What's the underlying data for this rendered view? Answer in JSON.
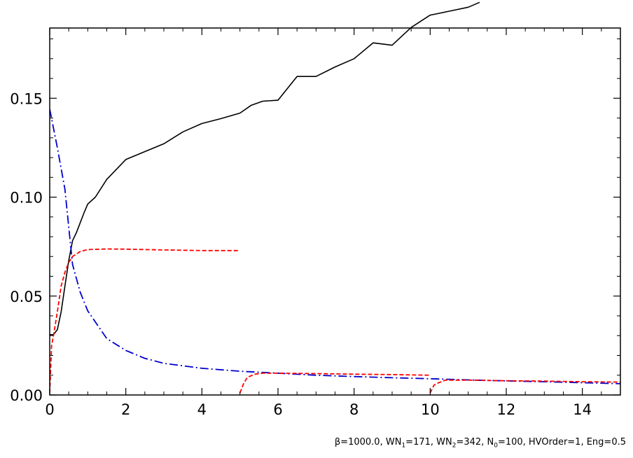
{
  "chart_data": {
    "type": "line",
    "title": "",
    "xlabel": "",
    "ylabel": "",
    "xlim": [
      0,
      15
    ],
    "ylim": [
      0,
      0.1855
    ],
    "x_ticks": [
      0,
      2,
      4,
      6,
      8,
      10,
      12,
      14
    ],
    "x_tick_labels": [
      "0",
      "2",
      "4",
      "6",
      "8",
      "10",
      "12",
      "14"
    ],
    "y_ticks": [
      0.0,
      0.05,
      0.1,
      0.15
    ],
    "y_tick_labels": [
      "0.00",
      "0.05",
      "0.10",
      "0.15"
    ],
    "grid": false,
    "series": [
      {
        "color": "#000000",
        "style": "solid",
        "points": [
          [
            0,
            0.0305
          ],
          [
            0.1,
            0.0305
          ],
          [
            0.2,
            0.033
          ],
          [
            0.3,
            0.042
          ],
          [
            0.4,
            0.055
          ],
          [
            0.5,
            0.068
          ],
          [
            0.6,
            0.078
          ],
          [
            0.7,
            0.082
          ],
          [
            0.8,
            0.087
          ],
          [
            0.9,
            0.092
          ],
          [
            1.0,
            0.0965
          ],
          [
            1.2,
            0.1
          ],
          [
            1.5,
            0.109
          ],
          [
            2.0,
            0.119
          ],
          [
            2.5,
            0.123
          ],
          [
            3.0,
            0.127
          ],
          [
            3.5,
            0.133
          ],
          [
            4.0,
            0.1372
          ],
          [
            4.5,
            0.1397
          ],
          [
            5.0,
            0.1425
          ],
          [
            5.3,
            0.1465
          ],
          [
            5.6,
            0.1485
          ],
          [
            6.0,
            0.149
          ],
          [
            6.5,
            0.161
          ],
          [
            7.0,
            0.161
          ],
          [
            7.5,
            0.1658
          ],
          [
            8.0,
            0.17
          ],
          [
            8.5,
            0.178
          ],
          [
            9.0,
            0.1768
          ],
          [
            9.5,
            0.1858
          ],
          [
            10.0,
            0.192
          ],
          [
            10.5,
            0.194
          ],
          [
            11.0,
            0.196
          ],
          [
            11.3,
            0.1985
          ]
        ]
      },
      {
        "color": "#0000cc",
        "style": "dashdot",
        "points": [
          [
            0,
            0.1445
          ],
          [
            0.2,
            0.125
          ],
          [
            0.4,
            0.104
          ],
          [
            0.6,
            0.066
          ],
          [
            0.8,
            0.052
          ],
          [
            1.0,
            0.0425
          ],
          [
            1.5,
            0.0285
          ],
          [
            2.0,
            0.0225
          ],
          [
            2.5,
            0.0185
          ],
          [
            3.0,
            0.016
          ],
          [
            4.0,
            0.0135
          ],
          [
            5.0,
            0.012
          ],
          [
            6.0,
            0.011
          ],
          [
            7.0,
            0.01
          ],
          [
            8.0,
            0.0093
          ],
          [
            9.0,
            0.0087
          ],
          [
            10.0,
            0.0082
          ],
          [
            11.0,
            0.0076
          ],
          [
            12.0,
            0.0071
          ],
          [
            13.0,
            0.0067
          ],
          [
            14.0,
            0.0062
          ],
          [
            15.0,
            0.0057
          ]
        ]
      },
      {
        "color": "#ff0000",
        "style": "dashed",
        "points": [
          [
            0,
            0.001
          ],
          [
            0.05,
            0.025
          ],
          [
            0.1,
            0.03
          ],
          [
            0.2,
            0.042
          ],
          [
            0.3,
            0.055
          ],
          [
            0.4,
            0.062
          ],
          [
            0.5,
            0.067
          ],
          [
            0.6,
            0.07
          ],
          [
            0.8,
            0.0725
          ],
          [
            1.0,
            0.0735
          ],
          [
            1.5,
            0.0738
          ],
          [
            2.0,
            0.0737
          ],
          [
            3.0,
            0.0733
          ],
          [
            4.0,
            0.073
          ],
          [
            5.0,
            0.073
          ]
        ]
      },
      {
        "color": "#ff0000",
        "style": "dashed",
        "points": [
          [
            5.0,
            0.001
          ],
          [
            5.1,
            0.006
          ],
          [
            5.2,
            0.009
          ],
          [
            5.4,
            0.0105
          ],
          [
            5.6,
            0.011
          ],
          [
            6.0,
            0.011
          ],
          [
            7.0,
            0.0108
          ],
          [
            8.0,
            0.0105
          ],
          [
            9.0,
            0.0103
          ],
          [
            10.0,
            0.01
          ]
        ]
      },
      {
        "color": "#ff0000",
        "style": "dashed",
        "points": [
          [
            10.0,
            0.001
          ],
          [
            10.1,
            0.005
          ],
          [
            10.2,
            0.006
          ],
          [
            10.4,
            0.0075
          ],
          [
            11.0,
            0.0075
          ],
          [
            12.0,
            0.0072
          ],
          [
            13.0,
            0.007
          ],
          [
            14.0,
            0.0067
          ],
          [
            15.0,
            0.0065
          ]
        ]
      }
    ],
    "annotation": {
      "beta": "β=1000.0, ",
      "wn1_pre": "WN",
      "wn1_sub": "1",
      "wn1_post": "=171, ",
      "wn2_pre": "WN",
      "wn2_sub": "2",
      "wn2_post": "=342, ",
      "n0_pre": "N",
      "n0_sub": "0",
      "n0_post": "=100, HVOrder=1, Eng=0.5"
    }
  }
}
